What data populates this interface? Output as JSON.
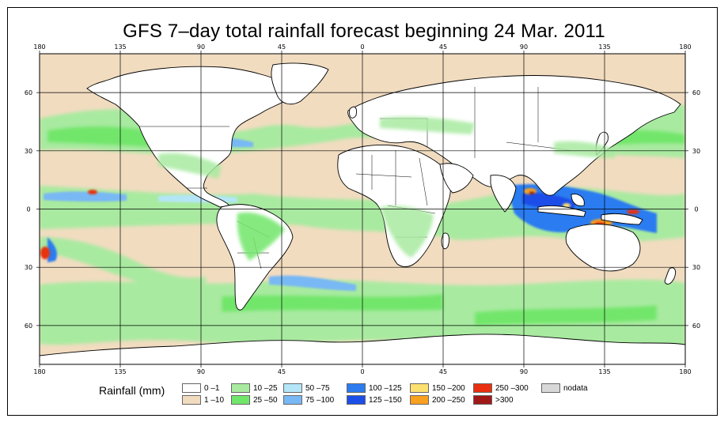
{
  "title": "GFS 7–day total rainfall forecast beginning 24 Mar. 2011",
  "axes": {
    "lon_top": [
      "180",
      "135",
      "90",
      "45",
      "0",
      "45",
      "90",
      "135",
      "180"
    ],
    "lon_bottom": [
      "180",
      "135",
      "90",
      "45",
      "0",
      "45",
      "90",
      "135",
      "180"
    ],
    "lat_left": [
      "60",
      "30",
      "0",
      "30",
      "60"
    ],
    "lat_right": [
      "60",
      "30",
      "0",
      "30",
      "60"
    ]
  },
  "legend": {
    "title": "Rainfall (mm)",
    "items": [
      {
        "label": "0 –1",
        "color": "#ffffff"
      },
      {
        "label": "1 –10",
        "color": "#f1dcc0"
      },
      {
        "label": "10 –25",
        "color": "#a8eaa0"
      },
      {
        "label": "25 –50",
        "color": "#72e66a"
      },
      {
        "label": "50 –75",
        "color": "#b4e6f8"
      },
      {
        "label": "75 –100",
        "color": "#78b8f4"
      },
      {
        "label": "100 –125",
        "color": "#2c7cf0"
      },
      {
        "label": "125 –150",
        "color": "#1c4ee8"
      },
      {
        "label": "150 –200",
        "color": "#fce070"
      },
      {
        "label": "200 –250",
        "color": "#f8a020"
      },
      {
        "label": "250 –300",
        "color": "#e83010"
      },
      {
        "label": ">300",
        "color": "#a01818"
      },
      {
        "label": "nodata",
        "color": "#d8d8d8"
      }
    ]
  },
  "colors": {
    "ocean_dry": "#f1dcc0",
    "wet_green": "#a8eaa0",
    "wetter_green": "#72e66a",
    "land_dry": "#ffffff",
    "coast": "#000000"
  }
}
